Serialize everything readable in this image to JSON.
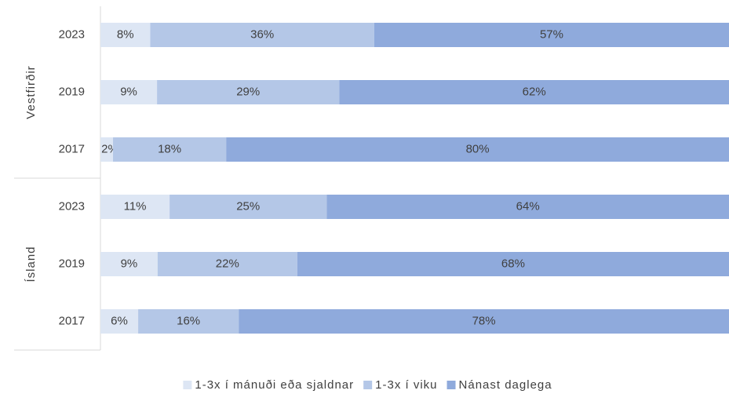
{
  "chart_data": {
    "type": "bar",
    "orientation": "horizontal",
    "stack": "percent",
    "groups": [
      {
        "name": "Vestfirðir",
        "categories": [
          "2023",
          "2019",
          "2017"
        ]
      },
      {
        "name": "Ísland",
        "categories": [
          "2023",
          "2019",
          "2017"
        ]
      }
    ],
    "series": [
      {
        "name": "1-3x í mánuði eða sjaldnar",
        "color": "#dde6f4",
        "values": [
          8,
          9,
          2,
          11,
          9,
          6
        ],
        "value_labels": [
          "8%",
          "9%",
          "2%",
          "11%",
          "9%",
          "6%"
        ]
      },
      {
        "name": "1-3x í viku",
        "color": "#b4c7e7",
        "values": [
          36,
          29,
          18,
          25,
          22,
          16
        ],
        "value_labels": [
          "36%",
          "29%",
          "18%",
          "25%",
          "22%",
          "16%"
        ]
      },
      {
        "name": "Nánast daglega",
        "color": "#8faadc",
        "values": [
          57,
          62,
          80,
          64,
          68,
          78
        ],
        "value_labels": [
          "57%",
          "62%",
          "80%",
          "64%",
          "68%",
          "78%"
        ]
      }
    ],
    "legend": "bottom"
  }
}
